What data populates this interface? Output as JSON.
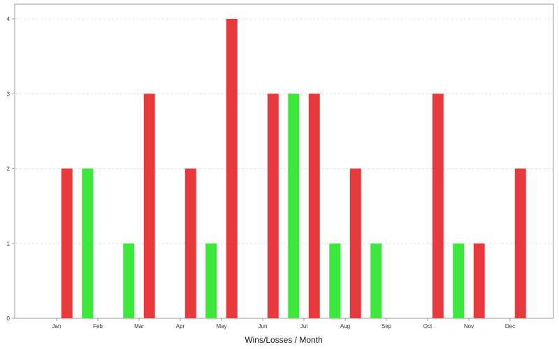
{
  "chart_data": {
    "type": "bar",
    "xlabel": "Wins/Losses / Month",
    "ylabel": "",
    "title": "",
    "categories": [
      "Jan",
      "Feb",
      "Mar",
      "Apr",
      "May",
      "Jun",
      "Jul",
      "Aug",
      "Sep",
      "Oct",
      "Nov",
      "Dec"
    ],
    "ylim": [
      0,
      4
    ],
    "yticks": [
      0,
      1,
      2,
      3,
      4
    ],
    "grid": "horizontal dashed",
    "legend": "none",
    "colors": {
      "win": "#3de83d",
      "loss": "#e8393d"
    },
    "bars": [
      {
        "month_index": 0.25,
        "value": 2,
        "result": "loss"
      },
      {
        "month_index": 0.75,
        "value": 2,
        "result": "win"
      },
      {
        "month_index": 1.75,
        "value": 1,
        "result": "win"
      },
      {
        "month_index": 2.25,
        "value": 3,
        "result": "loss"
      },
      {
        "month_index": 3.25,
        "value": 2,
        "result": "loss"
      },
      {
        "month_index": 3.75,
        "value": 1,
        "result": "win"
      },
      {
        "month_index": 4.25,
        "value": 4,
        "result": "loss"
      },
      {
        "month_index": 5.25,
        "value": 3,
        "result": "loss"
      },
      {
        "month_index": 5.75,
        "value": 3,
        "result": "win"
      },
      {
        "month_index": 6.25,
        "value": 3,
        "result": "loss"
      },
      {
        "month_index": 6.75,
        "value": 1,
        "result": "win"
      },
      {
        "month_index": 7.25,
        "value": 2,
        "result": "loss"
      },
      {
        "month_index": 7.75,
        "value": 1,
        "result": "win"
      },
      {
        "month_index": 9.25,
        "value": 3,
        "result": "loss"
      },
      {
        "month_index": 9.75,
        "value": 1,
        "result": "win"
      },
      {
        "month_index": 10.25,
        "value": 1,
        "result": "loss"
      },
      {
        "month_index": 11.25,
        "value": 2,
        "result": "loss"
      }
    ]
  }
}
